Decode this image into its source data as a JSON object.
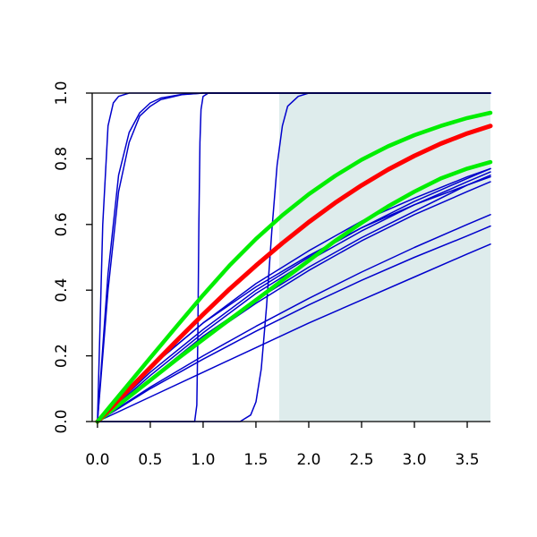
{
  "chart_data": {
    "type": "line",
    "title": "",
    "xlabel": "",
    "ylabel": "",
    "xlim": [
      -0.05,
      3.72
    ],
    "ylim": [
      0.0,
      1.0
    ],
    "xticks": [
      "0.0",
      "0.5",
      "1.0",
      "1.5",
      "2.0",
      "2.5",
      "3.0",
      "3.5"
    ],
    "yticks": [
      "0.0",
      "0.2",
      "0.4",
      "0.6",
      "0.8",
      "1.0"
    ],
    "grid": false,
    "legend": "none",
    "shaded_region": {
      "x_from": 1.72,
      "x_to": 3.72,
      "y_from": 0.0,
      "y_to": 1.0,
      "color": "#deecec"
    },
    "colors": {
      "blue": "#0000cc",
      "red": "#ff0000",
      "green": "#00ee00"
    },
    "series": [
      {
        "color": "blue",
        "width": 1.5,
        "x": [
          0,
          0.05,
          0.1,
          0.15,
          0.2,
          0.3,
          0.5,
          3.72
        ],
        "y": [
          0,
          0.6,
          0.9,
          0.97,
          0.99,
          1.0,
          1.0,
          1.0
        ]
      },
      {
        "color": "blue",
        "width": 1.5,
        "x": [
          0,
          0.1,
          0.2,
          0.3,
          0.4,
          0.5,
          0.6,
          0.8,
          1.0,
          3.72
        ],
        "y": [
          0,
          0.45,
          0.75,
          0.88,
          0.94,
          0.97,
          0.985,
          0.996,
          1.0,
          1.0
        ]
      },
      {
        "color": "blue",
        "width": 1.5,
        "x": [
          0,
          0.1,
          0.2,
          0.3,
          0.4,
          0.5,
          0.6,
          0.8,
          1.0,
          3.72
        ],
        "y": [
          0,
          0.4,
          0.7,
          0.85,
          0.93,
          0.96,
          0.98,
          0.995,
          1.0,
          1.0
        ]
      },
      {
        "color": "blue",
        "width": 1.5,
        "x": [
          0,
          0.92,
          0.94,
          0.95,
          0.96,
          0.97,
          0.98,
          1.0,
          1.05,
          3.72
        ],
        "y": [
          0,
          0.0,
          0.05,
          0.25,
          0.6,
          0.85,
          0.95,
          0.99,
          1.0,
          1.0
        ]
      },
      {
        "color": "blue",
        "width": 1.5,
        "x": [
          0,
          1.35,
          1.45,
          1.5,
          1.55,
          1.6,
          1.65,
          1.7,
          1.75,
          1.8,
          1.9,
          2.0,
          3.72
        ],
        "y": [
          0,
          0.0,
          0.02,
          0.06,
          0.16,
          0.35,
          0.58,
          0.78,
          0.9,
          0.96,
          0.99,
          1.0,
          1.0
        ]
      },
      {
        "color": "blue",
        "width": 1.5,
        "x": [
          0,
          0.5,
          1.0,
          1.5,
          2.0,
          2.5,
          3.0,
          3.5,
          3.72
        ],
        "y": [
          0,
          0.165,
          0.3,
          0.41,
          0.505,
          0.59,
          0.66,
          0.72,
          0.75
        ]
      },
      {
        "color": "blue",
        "width": 1.5,
        "x": [
          0,
          0.5,
          1.0,
          1.5,
          2.0,
          2.5,
          3.0,
          3.5,
          3.72
        ],
        "y": [
          0,
          0.165,
          0.3,
          0.42,
          0.52,
          0.61,
          0.68,
          0.745,
          0.77
        ]
      },
      {
        "color": "blue",
        "width": 1.5,
        "x": [
          0,
          0.5,
          1.0,
          1.5,
          2.0,
          2.5,
          3.0,
          3.5,
          3.72
        ],
        "y": [
          0,
          0.15,
          0.28,
          0.4,
          0.5,
          0.59,
          0.67,
          0.74,
          0.77
        ]
      },
      {
        "color": "blue",
        "width": 1.5,
        "x": [
          0,
          0.5,
          1.0,
          1.5,
          2.0,
          2.5,
          3.0,
          3.5,
          3.72
        ],
        "y": [
          0,
          0.14,
          0.27,
          0.39,
          0.49,
          0.58,
          0.66,
          0.73,
          0.76
        ]
      },
      {
        "color": "blue",
        "width": 1.5,
        "x": [
          0,
          0.5,
          1.0,
          1.5,
          2.0,
          2.5,
          3.0,
          3.5,
          3.72
        ],
        "y": [
          0,
          0.13,
          0.26,
          0.37,
          0.47,
          0.56,
          0.64,
          0.72,
          0.745
        ]
      },
      {
        "color": "blue",
        "width": 1.5,
        "x": [
          0,
          0.5,
          1.0,
          1.5,
          2.0,
          2.5,
          3.0,
          3.5,
          3.72
        ],
        "y": [
          0,
          0.13,
          0.25,
          0.36,
          0.46,
          0.55,
          0.63,
          0.7,
          0.73
        ]
      },
      {
        "color": "blue",
        "width": 1.5,
        "x": [
          0,
          0.5,
          1.0,
          1.5,
          2.0,
          2.5,
          3.0,
          3.5,
          3.72
        ],
        "y": [
          0,
          0.105,
          0.2,
          0.29,
          0.375,
          0.455,
          0.53,
          0.6,
          0.63
        ]
      },
      {
        "color": "blue",
        "width": 1.5,
        "x": [
          0,
          0.5,
          1.0,
          1.5,
          2.0,
          2.5,
          3.0,
          3.5,
          3.72
        ],
        "y": [
          0,
          0.1,
          0.19,
          0.275,
          0.355,
          0.43,
          0.5,
          0.565,
          0.595
        ]
      },
      {
        "color": "blue",
        "width": 1.5,
        "x": [
          0,
          0.5,
          1.0,
          1.5,
          2.0,
          2.5,
          3.0,
          3.5,
          3.72
        ],
        "y": [
          0,
          0.075,
          0.15,
          0.225,
          0.3,
          0.37,
          0.44,
          0.51,
          0.54
        ]
      },
      {
        "color": "green",
        "width": 4.5,
        "x": [
          0,
          0.25,
          0.5,
          0.75,
          1.0,
          1.25,
          1.5,
          1.75,
          2.0,
          2.25,
          2.5,
          2.75,
          3.0,
          3.25,
          3.5,
          3.72
        ],
        "y": [
          0,
          0.063,
          0.126,
          0.189,
          0.25,
          0.31,
          0.37,
          0.43,
          0.49,
          0.55,
          0.605,
          0.655,
          0.7,
          0.74,
          0.77,
          0.79
        ]
      },
      {
        "color": "red",
        "width": 5,
        "x": [
          0,
          0.25,
          0.5,
          0.75,
          1.0,
          1.25,
          1.5,
          1.75,
          2.0,
          2.25,
          2.5,
          2.75,
          3.0,
          3.25,
          3.5,
          3.72
        ],
        "y": [
          0,
          0.082,
          0.164,
          0.246,
          0.326,
          0.403,
          0.475,
          0.543,
          0.607,
          0.666,
          0.719,
          0.767,
          0.809,
          0.846,
          0.877,
          0.9
        ]
      },
      {
        "color": "green",
        "width": 4.5,
        "x": [
          0,
          0.25,
          0.5,
          0.75,
          1.0,
          1.25,
          1.5,
          1.75,
          2.0,
          2.25,
          2.5,
          2.75,
          3.0,
          3.25,
          3.5,
          3.72
        ],
        "y": [
          0,
          0.097,
          0.194,
          0.29,
          0.385,
          0.475,
          0.556,
          0.628,
          0.692,
          0.748,
          0.797,
          0.838,
          0.872,
          0.9,
          0.924,
          0.94
        ]
      }
    ]
  }
}
